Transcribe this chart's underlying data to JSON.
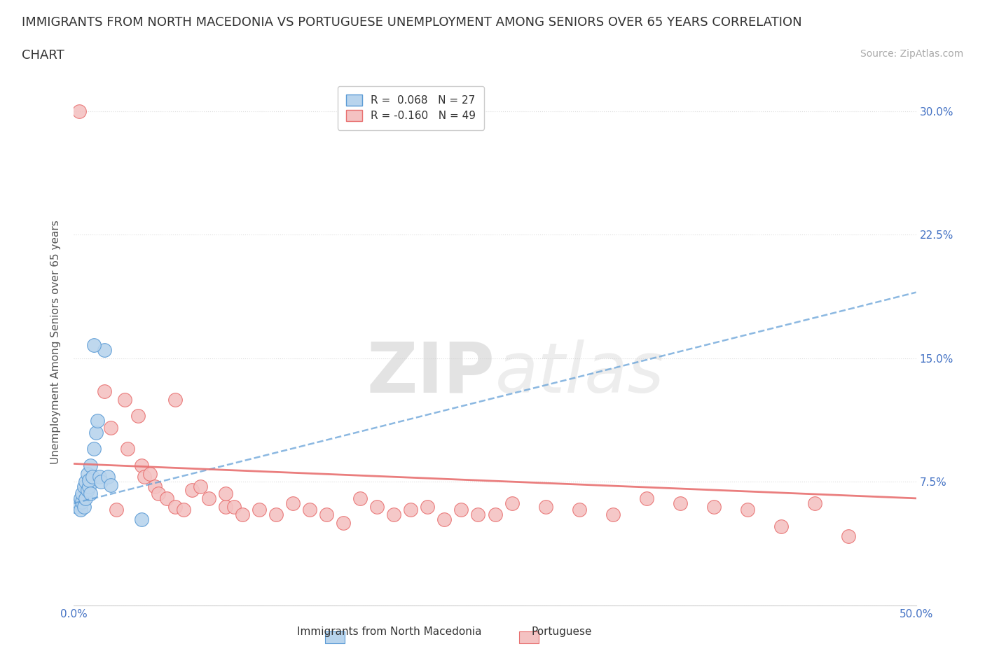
{
  "title_line1": "IMMIGRANTS FROM NORTH MACEDONIA VS PORTUGUESE UNEMPLOYMENT AMONG SENIORS OVER 65 YEARS CORRELATION",
  "title_line2": "CHART",
  "source_text": "Source: ZipAtlas.com",
  "ylabel": "Unemployment Among Seniors over 65 years",
  "xlim": [
    0.0,
    0.5
  ],
  "ylim": [
    0.0,
    0.32
  ],
  "xticks": [
    0.0,
    0.1,
    0.2,
    0.3,
    0.4,
    0.5
  ],
  "xticklabels": [
    "0.0%",
    "",
    "",
    "",
    "",
    "50.0%"
  ],
  "yticks": [
    0.0,
    0.075,
    0.15,
    0.225,
    0.3
  ],
  "yticklabels": [
    "",
    "7.5%",
    "15.0%",
    "22.5%",
    "30.0%"
  ],
  "grid_color": "#dddddd",
  "background_color": "#ffffff",
  "blue_scatter_x": [
    0.002,
    0.003,
    0.004,
    0.004,
    0.005,
    0.005,
    0.006,
    0.006,
    0.007,
    0.007,
    0.008,
    0.008,
    0.009,
    0.009,
    0.01,
    0.01,
    0.011,
    0.012,
    0.013,
    0.014,
    0.015,
    0.016,
    0.018,
    0.02,
    0.022,
    0.04,
    0.012
  ],
  "blue_scatter_y": [
    0.06,
    0.062,
    0.058,
    0.065,
    0.063,
    0.068,
    0.06,
    0.072,
    0.065,
    0.075,
    0.07,
    0.08,
    0.072,
    0.076,
    0.068,
    0.085,
    0.078,
    0.095,
    0.105,
    0.112,
    0.078,
    0.075,
    0.155,
    0.078,
    0.073,
    0.052,
    0.158
  ],
  "pink_scatter_x": [
    0.003,
    0.018,
    0.022,
    0.03,
    0.032,
    0.038,
    0.04,
    0.042,
    0.045,
    0.048,
    0.05,
    0.055,
    0.06,
    0.065,
    0.07,
    0.075,
    0.08,
    0.09,
    0.095,
    0.1,
    0.11,
    0.12,
    0.13,
    0.14,
    0.15,
    0.16,
    0.17,
    0.18,
    0.19,
    0.2,
    0.21,
    0.22,
    0.23,
    0.24,
    0.25,
    0.26,
    0.28,
    0.3,
    0.32,
    0.34,
    0.36,
    0.38,
    0.4,
    0.42,
    0.44,
    0.46,
    0.06,
    0.09,
    0.025
  ],
  "pink_scatter_y": [
    0.3,
    0.13,
    0.108,
    0.125,
    0.095,
    0.115,
    0.085,
    0.078,
    0.08,
    0.072,
    0.068,
    0.065,
    0.06,
    0.058,
    0.07,
    0.072,
    0.065,
    0.06,
    0.06,
    0.055,
    0.058,
    0.055,
    0.062,
    0.058,
    0.055,
    0.05,
    0.065,
    0.06,
    0.055,
    0.058,
    0.06,
    0.052,
    0.058,
    0.055,
    0.055,
    0.062,
    0.06,
    0.058,
    0.055,
    0.065,
    0.062,
    0.06,
    0.058,
    0.048,
    0.062,
    0.042,
    0.125,
    0.068,
    0.058
  ],
  "blue_color": "#b8d4ed",
  "blue_edge_color": "#5b9bd5",
  "pink_color": "#f4c2c2",
  "pink_edge_color": "#e87070",
  "blue_trendline_x": [
    0.0,
    0.5
  ],
  "blue_trendline_y": [
    0.062,
    0.19
  ],
  "pink_trendline_x": [
    0.0,
    0.5
  ],
  "pink_trendline_y": [
    0.086,
    0.065
  ],
  "legend_r_blue": "R =  0.068",
  "legend_n_blue": "N = 27",
  "legend_r_pink": "R = -0.160",
  "legend_n_pink": "N = 49",
  "watermark_zip": "ZIP",
  "watermark_atlas": "atlas",
  "title_fontsize": 13,
  "label_fontsize": 11,
  "tick_fontsize": 11,
  "legend_fontsize": 11,
  "source_fontsize": 10
}
